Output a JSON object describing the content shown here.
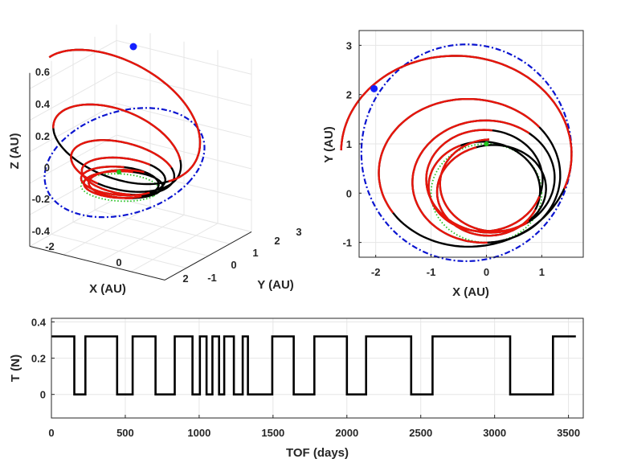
{
  "colors": {
    "thrust": "#000000",
    "coast": "#e8150b",
    "earth": "#22c21e",
    "target": "#0a14d0",
    "point": "#1420ff",
    "grid": "#e6e6e6",
    "axis": "#262626"
  },
  "chart_data": [
    {
      "id": "traj3d",
      "type": "line",
      "title": "",
      "xlabel": "X (AU)",
      "ylabel": "Y (AU)",
      "zlabel": "Z (AU)",
      "xlim": [
        -2,
        2
      ],
      "ylim": [
        -1,
        3
      ],
      "zlim": [
        -0.4,
        0.7
      ],
      "x_ticks": [
        "-2",
        "0",
        "2"
      ],
      "y_ticks": [
        "-1",
        "0",
        "1",
        "2",
        "3"
      ],
      "z_ticks": [
        "-0.4",
        "-0.2",
        "0",
        "0.2",
        "0.4",
        "0.6"
      ],
      "series": [
        {
          "name": "Earth orbit",
          "style": "dotted",
          "color_key": "earth",
          "a": 1.0,
          "inclination_deg": 0
        },
        {
          "name": "Target orbit",
          "style": "dash-dot",
          "color_key": "target",
          "a": 2.2,
          "inclination_deg": 17
        },
        {
          "name": "Thrust arcs",
          "style": "solid",
          "color_key": "thrust"
        },
        {
          "name": "Coast arcs",
          "style": "solid",
          "color_key": "coast"
        }
      ],
      "markers": [
        {
          "name": "Arrival",
          "x": -2.05,
          "y": 2.1,
          "z": 0.65
        },
        {
          "name": "Departure",
          "x": 0.0,
          "y": 1.0,
          "z": 0.0
        }
      ]
    },
    {
      "id": "trajxy",
      "type": "line",
      "title": "",
      "xlabel": "X (AU)",
      "ylabel": "Y (AU)",
      "xlim": [
        -2.3,
        1.75
      ],
      "ylim": [
        -1.3,
        3.3
      ],
      "x_ticks": [
        -2,
        -1,
        0,
        1
      ],
      "y_ticks": [
        -1,
        0,
        1,
        2,
        3
      ],
      "series": [
        {
          "name": "Earth orbit",
          "style": "dotted",
          "color_key": "earth",
          "center": [
            0,
            0
          ],
          "radius": 1.0
        },
        {
          "name": "Target orbit",
          "style": "dash-dot",
          "color_key": "target",
          "center": [
            -0.36,
            0.82
          ],
          "rx": 1.9,
          "ry": 2.2
        },
        {
          "name": "Thrust arcs",
          "style": "solid",
          "color_key": "thrust"
        },
        {
          "name": "Coast arcs",
          "style": "solid",
          "color_key": "coast"
        }
      ],
      "markers": [
        {
          "name": "Arrival",
          "x": -2.03,
          "y": 2.12
        },
        {
          "name": "Departure",
          "x": 0.0,
          "y": 1.0
        }
      ]
    },
    {
      "id": "thrust",
      "type": "line",
      "title": "",
      "xlabel": "TOF (days)",
      "ylabel": "T (N)",
      "xlim": [
        0,
        3600
      ],
      "ylim": [
        -0.13,
        0.42
      ],
      "x_ticks": [
        0,
        500,
        1000,
        1500,
        2000,
        2500,
        3000,
        3500
      ],
      "y_ticks": [
        0,
        0.2,
        0.4
      ],
      "x": [
        0,
        155,
        155,
        230,
        230,
        445,
        445,
        550,
        550,
        705,
        705,
        835,
        835,
        955,
        955,
        1005,
        1005,
        1050,
        1050,
        1090,
        1090,
        1135,
        1135,
        1170,
        1170,
        1235,
        1235,
        1295,
        1295,
        1330,
        1330,
        1495,
        1495,
        1640,
        1640,
        1780,
        1780,
        2000,
        2000,
        2130,
        2130,
        2435,
        2435,
        2580,
        2580,
        3105,
        3105,
        3395,
        3395,
        3550
      ],
      "values": [
        0.32,
        0.32,
        0,
        0,
        0.32,
        0.32,
        0,
        0,
        0.32,
        0.32,
        0,
        0,
        0.32,
        0.32,
        0,
        0,
        0.32,
        0.32,
        0,
        0,
        0.32,
        0.32,
        0,
        0,
        0.32,
        0.32,
        0,
        0,
        0.32,
        0.32,
        0,
        0,
        0.32,
        0.32,
        0,
        0,
        0.32,
        0.32,
        0,
        0,
        0.32,
        0.32,
        0,
        0,
        0.32,
        0.32,
        0,
        0,
        0.32,
        0.32
      ]
    }
  ]
}
